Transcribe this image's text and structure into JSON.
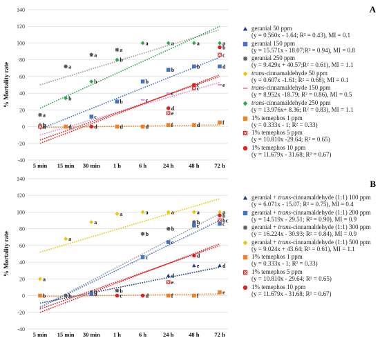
{
  "x_categories": [
    "5 min",
    "15 min",
    "30 min",
    "1 h",
    "6 h",
    "24 h",
    "48 h",
    "72 h"
  ],
  "panels": [
    {
      "letter": "A",
      "ylabel": "% Mortality rate",
      "yticks": [
        "-40",
        "-20",
        "0",
        "20",
        "40",
        "60",
        "80",
        "100",
        "120",
        "140"
      ],
      "ylim": [
        -40,
        140
      ],
      "legend": [
        {
          "name": "geranial 50 ppm",
          "italic_prefix": "",
          "rest": "",
          "eq": "(y = 0.560x - 1.64; R² = 0.43), MI = 0.1",
          "color": "#1f3c88",
          "marker": "triangle"
        },
        {
          "name": "geranial 150 ppm",
          "italic_prefix": "",
          "rest": "",
          "eq": "(y = 15.571x - 18.07;R² = 0.94), MI = 0.8",
          "color": "#4472c4",
          "marker": "square"
        },
        {
          "name": "geranial 250 ppm",
          "italic_prefix": "",
          "rest": "",
          "eq": "(y = 9.429x + 40.57;R² = 0.61), MI = 1.1",
          "color": "#555555",
          "marker": "asterisk"
        },
        {
          "name": "",
          "italic_prefix": "trans",
          "rest": "-cinnamaldehyde 50 ppm",
          "eq": "(y = 0.607x -1.61; R² = 0.68), MI = 0.1",
          "color": "#f2c200",
          "marker": "diamond"
        },
        {
          "name": "",
          "italic_prefix": "trans",
          "rest": "-cinnamaldehyde 150 ppm",
          "eq": "(y = 8.952x -18.79; R² = 0.86), MI = 0.5",
          "color": "#e58ad6",
          "marker": "dash"
        },
        {
          "name": "",
          "italic_prefix": "trans",
          "rest": "-cinnamaldehyde 250 ppm",
          "eq": "(y = 13.976x+ 8.36; R² = 0.83), MI = 1.1",
          "color": "#2aa84a",
          "marker": "diamond"
        },
        {
          "name": "1% temephos 1 ppm",
          "italic_prefix": "",
          "rest": "",
          "eq": "(y = 0.333x - 1; R² = 0.33)",
          "color": "#f08020",
          "marker": "square"
        },
        {
          "name": "1% temephos 5 ppm",
          "italic_prefix": "",
          "rest": "",
          "eq": "(y = 10.810x -29.64; R² = 0.65)",
          "color": "#e02020",
          "marker": "xsquare"
        },
        {
          "name": "1% temephos 10 ppm",
          "italic_prefix": "",
          "rest": "",
          "eq": "(y = 11.679x - 31.68; R² = 0.67)",
          "color": "#e02020",
          "marker": "circle"
        }
      ],
      "points": [
        {
          "series": 0,
          "x": 0,
          "y": 0,
          "label": "b"
        },
        {
          "series": 2,
          "x": 0,
          "y": 14,
          "label": "a"
        },
        {
          "series": 5,
          "x": 0,
          "y": 2,
          "label": "b"
        },
        {
          "series": 7,
          "x": 0,
          "y": 0,
          "label": "d"
        },
        {
          "series": 2,
          "x": 1,
          "y": 72,
          "label": "a"
        },
        {
          "series": 5,
          "x": 1,
          "y": 34,
          "label": "b"
        },
        {
          "series": 6,
          "x": 1,
          "y": 0,
          "label": "d"
        },
        {
          "series": 2,
          "x": 2,
          "y": 86,
          "label": "a"
        },
        {
          "series": 5,
          "x": 2,
          "y": 54,
          "label": "b"
        },
        {
          "series": 1,
          "x": 2,
          "y": 12,
          "label": "c"
        },
        {
          "series": 8,
          "x": 2,
          "y": 0,
          "label": "d"
        },
        {
          "series": 2,
          "x": 3,
          "y": 92,
          "label": "a"
        },
        {
          "series": 5,
          "x": 3,
          "y": 80,
          "label": "b"
        },
        {
          "series": 1,
          "x": 3,
          "y": 30,
          "label": "b"
        },
        {
          "series": 6,
          "x": 3,
          "y": 0,
          "label": "d"
        },
        {
          "series": 5,
          "x": 4,
          "y": 100,
          "label": "a"
        },
        {
          "series": 1,
          "x": 4,
          "y": 54,
          "label": "b"
        },
        {
          "series": 4,
          "x": 4,
          "y": 32,
          "label": "c"
        },
        {
          "series": 6,
          "x": 4,
          "y": 0,
          "label": "d"
        },
        {
          "series": 5,
          "x": 5,
          "y": 100,
          "label": "a"
        },
        {
          "series": 1,
          "x": 5,
          "y": 68,
          "label": "b"
        },
        {
          "series": 4,
          "x": 5,
          "y": 40,
          "label": "c"
        },
        {
          "series": 8,
          "x": 5,
          "y": 22,
          "label": "d"
        },
        {
          "series": 7,
          "x": 5,
          "y": 16,
          "label": "e"
        },
        {
          "series": 6,
          "x": 5,
          "y": 2,
          "label": "f"
        },
        {
          "series": 5,
          "x": 6,
          "y": 100,
          "label": "a"
        },
        {
          "series": 1,
          "x": 6,
          "y": 72,
          "label": "b"
        },
        {
          "series": 8,
          "x": 6,
          "y": 50,
          "label": "c"
        },
        {
          "series": 7,
          "x": 6,
          "y": 46,
          "label": "c"
        },
        {
          "series": 6,
          "x": 6,
          "y": 2,
          "label": "d"
        },
        {
          "series": 5,
          "x": 7,
          "y": 100,
          "label": "a"
        },
        {
          "series": 8,
          "x": 7,
          "y": 95,
          "label": "b"
        },
        {
          "series": 7,
          "x": 7,
          "y": 86,
          "label": "c"
        },
        {
          "series": 1,
          "x": 7,
          "y": 72,
          "label": "d"
        },
        {
          "series": 4,
          "x": 7,
          "y": 50,
          "label": "e"
        },
        {
          "series": 6,
          "x": 7,
          "y": 5,
          "label": "f"
        }
      ],
      "trends": [
        {
          "color": "#9a9a9a",
          "x0": 0,
          "y0": 50,
          "x1": 7,
          "y1": 116
        },
        {
          "color": "#2aa84a",
          "x0": 0,
          "y0": 22,
          "x1": 7,
          "y1": 120
        },
        {
          "color": "#4472c4",
          "x0": 0,
          "y0": -3,
          "x1": 7,
          "y1": 83
        },
        {
          "color": "#e58ad6",
          "x0": 0,
          "y0": -10,
          "x1": 7,
          "y1": 53
        },
        {
          "color": "#e02020",
          "x0": 0,
          "y0": -16,
          "x1": 7,
          "y1": 60
        },
        {
          "color": "#e02020",
          "x0": 0,
          "y0": -20,
          "x1": 7,
          "y1": 62
        },
        {
          "color": "#f08020",
          "x0": 0,
          "y0": -1,
          "x1": 7,
          "y1": 2
        }
      ]
    },
    {
      "letter": "B",
      "ylabel": "% Mortality rate",
      "yticks": [
        "-40",
        "-20",
        "0",
        "20",
        "40",
        "60",
        "80",
        "100",
        "120",
        "140"
      ],
      "ylim": [
        -40,
        140
      ],
      "legend": [
        {
          "name": "geranial + ",
          "italic_prefix": "trans",
          "rest": "-cinnamaldehyde (1:1) 100 ppm",
          "eq": "(y = 6.071x - 15.07; R² = 0.75), MI = 0.4",
          "color": "#1f3c88",
          "marker": "triangle"
        },
        {
          "name": "geranial + ",
          "italic_prefix": "trans",
          "rest": "-cinnamaldehyde (1:1) 200 ppm",
          "eq": "(y = 14.519x - 29.51; R² = 0.90), MI = 0.9",
          "color": "#4472c4",
          "marker": "square"
        },
        {
          "name": "geranial + ",
          "italic_prefix": "trans",
          "rest": "-cinnamaldehyde (1:1) 300 ppm",
          "eq": "(y = 16.224x - 30.93; R² = 0.84), MI = 0.9",
          "color": "#555555",
          "marker": "asterisk"
        },
        {
          "name": "geranial + ",
          "italic_prefix": "trans",
          "rest": "-cinnamaldehyde (1:1) 500 ppm",
          "eq": "(y = 9.024x + 43.64; R² = 0.61), MI = 1.1",
          "color": "#f2c200",
          "marker": "diamond"
        },
        {
          "name": "1% temephos 1 ppm",
          "italic_prefix": "",
          "rest": "",
          "eq": "(y = 0.333x - 1; R² = 0.33)",
          "color": "#f08020",
          "marker": "square"
        },
        {
          "name": "1% temephos 5 ppm",
          "italic_prefix": "",
          "rest": "",
          "eq": "(y = 10.810x - 29.64; R² = 0.65)",
          "color": "#e02020",
          "marker": "xsquare"
        },
        {
          "name": "1% temephos 10 ppm",
          "italic_prefix": "",
          "rest": "",
          "eq": "(y = 11.679x - 31.68; R² = 0.67)",
          "color": "#e02020",
          "marker": "circle"
        }
      ],
      "points": [
        {
          "series": 3,
          "x": 0,
          "y": 20,
          "label": "a"
        },
        {
          "series": 4,
          "x": 0,
          "y": 0,
          "label": "b"
        },
        {
          "series": 3,
          "x": 1,
          "y": 68,
          "label": "a"
        },
        {
          "series": 2,
          "x": 1,
          "y": 0,
          "label": "b"
        },
        {
          "series": 3,
          "x": 2,
          "y": 88,
          "label": "a"
        },
        {
          "series": 2,
          "x": 2,
          "y": 4,
          "label": "b"
        },
        {
          "series": 1,
          "x": 2,
          "y": 2,
          "label": "b"
        },
        {
          "series": 3,
          "x": 3,
          "y": 98,
          "label": "a"
        },
        {
          "series": 2,
          "x": 3,
          "y": 6,
          "label": "b"
        },
        {
          "series": 6,
          "x": 3,
          "y": 0,
          "label": "c"
        },
        {
          "series": 3,
          "x": 4,
          "y": 100,
          "label": "a"
        },
        {
          "series": 2,
          "x": 4,
          "y": 74,
          "label": "b"
        },
        {
          "series": 1,
          "x": 4,
          "y": 46,
          "label": "c"
        },
        {
          "series": 6,
          "x": 4,
          "y": 0,
          "label": "d"
        },
        {
          "series": 3,
          "x": 5,
          "y": 100,
          "label": "a"
        },
        {
          "series": 2,
          "x": 5,
          "y": 80,
          "label": "b"
        },
        {
          "series": 1,
          "x": 5,
          "y": 64,
          "label": "c"
        },
        {
          "series": 0,
          "x": 5,
          "y": 24,
          "label": "d"
        },
        {
          "series": 5,
          "x": 5,
          "y": 16,
          "label": "e"
        },
        {
          "series": 4,
          "x": 5,
          "y": 0,
          "label": "f"
        },
        {
          "series": 3,
          "x": 6,
          "y": 100,
          "label": "a"
        },
        {
          "series": 2,
          "x": 6,
          "y": 88,
          "label": "b"
        },
        {
          "series": 1,
          "x": 6,
          "y": 84,
          "label": "c"
        },
        {
          "series": 8,
          "x": 6,
          "y": 48,
          "label": "d"
        },
        {
          "series": 0,
          "x": 6,
          "y": 36,
          "label": "e"
        },
        {
          "series": 4,
          "x": 6,
          "y": 0,
          "label": "f"
        },
        {
          "series": 3,
          "x": 7,
          "y": 100,
          "label": "a"
        },
        {
          "series": 6,
          "x": 7,
          "y": 96,
          "label": "b"
        },
        {
          "series": 5,
          "x": 7,
          "y": 90,
          "label": "bc"
        },
        {
          "series": 1,
          "x": 7,
          "y": 86,
          "label": "c"
        },
        {
          "series": 0,
          "x": 7,
          "y": 36,
          "label": "d"
        },
        {
          "series": 4,
          "x": 7,
          "y": 4,
          "label": "e"
        }
      ],
      "trends": [
        {
          "color": "#f2c200",
          "x0": 0,
          "y0": 52,
          "x1": 7,
          "y1": 116
        },
        {
          "color": "#9a9a9a",
          "x0": 0,
          "y0": -14,
          "x1": 7,
          "y1": 98
        },
        {
          "color": "#4472c4",
          "x0": 0,
          "y0": -14,
          "x1": 7,
          "y1": 90
        },
        {
          "color": "#1f3c88",
          "x0": 0,
          "y0": -9,
          "x1": 7,
          "y1": 34
        },
        {
          "color": "#e02020",
          "x0": 0,
          "y0": -16,
          "x1": 7,
          "y1": 60
        },
        {
          "color": "#e02020",
          "x0": 0,
          "y0": -20,
          "x1": 7,
          "y1": 62
        },
        {
          "color": "#f08020",
          "x0": 0,
          "y0": -1,
          "x1": 7,
          "y1": 2
        }
      ]
    }
  ],
  "chart_data": [
    {
      "type": "scatter",
      "title": "A",
      "ylabel": "% Mortality rate",
      "categories": [
        "5 min",
        "15 min",
        "30 min",
        "1 h",
        "6 h",
        "24 h",
        "48 h",
        "72 h"
      ],
      "ylim": [
        -40,
        140
      ],
      "series": [
        {
          "name": "geranial 50 ppm",
          "values": [
            0,
            0,
            0,
            0,
            0,
            0,
            0,
            0
          ]
        },
        {
          "name": "geranial 150 ppm",
          "values": [
            0,
            0,
            12,
            30,
            54,
            68,
            72,
            72
          ]
        },
        {
          "name": "geranial 250 ppm",
          "values": [
            14,
            72,
            86,
            92,
            100,
            100,
            100,
            100
          ]
        },
        {
          "name": "trans-cinnamaldehyde 50 ppm",
          "values": [
            0,
            0,
            0,
            0,
            0,
            0,
            0,
            2
          ]
        },
        {
          "name": "trans-cinnamaldehyde 150 ppm",
          "values": [
            0,
            0,
            0,
            0,
            32,
            40,
            46,
            50
          ]
        },
        {
          "name": "trans-cinnamaldehyde 250 ppm",
          "values": [
            2,
            34,
            54,
            80,
            100,
            100,
            100,
            100
          ]
        },
        {
          "name": "1% temephos 1 ppm",
          "values": [
            0,
            0,
            0,
            0,
            0,
            2,
            2,
            5
          ]
        },
        {
          "name": "1% temephos 5 ppm",
          "values": [
            0,
            0,
            0,
            0,
            0,
            16,
            46,
            86
          ]
        },
        {
          "name": "1% temephos 10 ppm",
          "values": [
            0,
            0,
            0,
            0,
            0,
            22,
            50,
            95
          ]
        }
      ]
    },
    {
      "type": "scatter",
      "title": "B",
      "ylabel": "% Mortality rate",
      "categories": [
        "5 min",
        "15 min",
        "30 min",
        "1 h",
        "6 h",
        "24 h",
        "48 h",
        "72 h"
      ],
      "ylim": [
        -40,
        140
      ],
      "series": [
        {
          "name": "geranial + trans-cinnamaldehyde (1:1) 100 ppm",
          "values": [
            0,
            0,
            0,
            0,
            0,
            24,
            36,
            36
          ]
        },
        {
          "name": "geranial + trans-cinnamaldehyde (1:1) 200 ppm",
          "values": [
            0,
            0,
            2,
            4,
            46,
            64,
            84,
            86
          ]
        },
        {
          "name": "geranial + trans-cinnamaldehyde (1:1) 300 ppm",
          "values": [
            0,
            0,
            4,
            6,
            74,
            80,
            88,
            96
          ]
        },
        {
          "name": "geranial + trans-cinnamaldehyde (1:1) 500 ppm",
          "values": [
            20,
            68,
            88,
            98,
            100,
            100,
            100,
            100
          ]
        },
        {
          "name": "1% temephos 1 ppm",
          "values": [
            0,
            0,
            0,
            0,
            0,
            0,
            0,
            4
          ]
        },
        {
          "name": "1% temephos 5 ppm",
          "values": [
            0,
            0,
            0,
            0,
            0,
            16,
            46,
            90
          ]
        },
        {
          "name": "1% temephos 10 ppm",
          "values": [
            0,
            0,
            0,
            0,
            0,
            20,
            50,
            96
          ]
        }
      ]
    }
  ]
}
